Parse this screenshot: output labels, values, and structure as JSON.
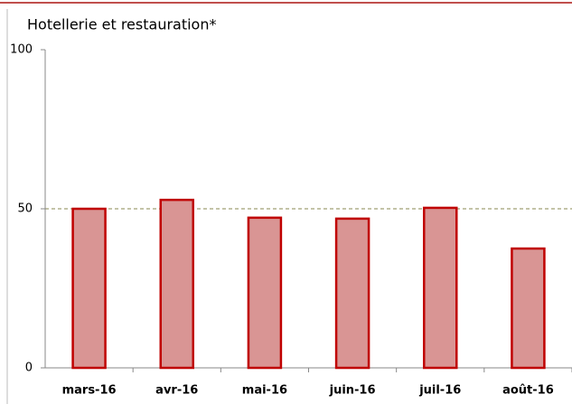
{
  "chart_data": {
    "type": "bar",
    "title": "Hotellerie et restauration*",
    "categories": [
      "mars-16",
      "avr-16",
      "mai-16",
      "juin-16",
      "juil-16",
      "août-16"
    ],
    "values": [
      50,
      52.8,
      47.2,
      46.9,
      50.3,
      37.5
    ],
    "color": "#d99594",
    "edge_color": "#c00000",
    "ylim": [
      0,
      100
    ],
    "yticks": [
      0,
      50,
      100
    ],
    "reference_line": 50,
    "reference_color": "#8a8a50"
  }
}
